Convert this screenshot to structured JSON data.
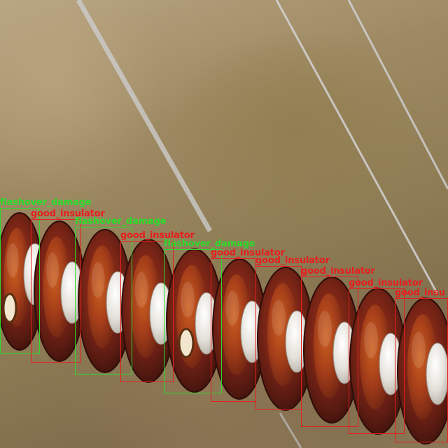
{
  "colors": {
    "flashover": "#2bdc2b",
    "good": "#e81e1e"
  },
  "detections": [
    {
      "label": "flashover_damage",
      "class": "flashover"
    },
    {
      "label": "good_insulator",
      "class": "good"
    },
    {
      "label": "flashover_damage",
      "class": "flashover"
    },
    {
      "label": "good_insulator",
      "class": "good"
    },
    {
      "label": "flashover_damage",
      "class": "flashover"
    },
    {
      "label": "good_insulator",
      "class": "good"
    },
    {
      "label": "good_insulator",
      "class": "good"
    },
    {
      "label": "good_insulator",
      "class": "good"
    },
    {
      "label": "good_insulator",
      "class": "good"
    },
    {
      "label": "good_insu",
      "class": "good"
    }
  ]
}
